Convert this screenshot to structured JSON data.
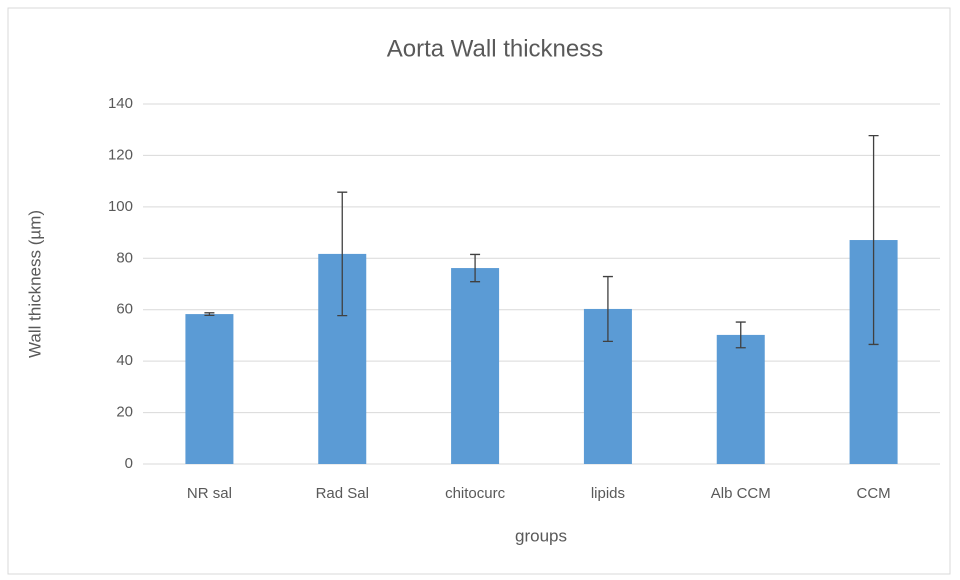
{
  "chart_data": {
    "type": "bar",
    "title": "Aorta Wall thickness",
    "x_label": "groups",
    "y_label": "Wall thickness (µm)",
    "categories": [
      "NR sal",
      "Rad Sal",
      "chitocurc",
      "lipids",
      "Alb CCM",
      "CCM"
    ],
    "values": [
      58.3,
      81.7,
      76.2,
      60.3,
      50.2,
      87.1
    ],
    "errors": [
      0.5,
      24,
      5.3,
      12.6,
      5,
      40.6
    ],
    "color": "#5b9bd5",
    "ylim": [
      0,
      140
    ],
    "yticks": [
      0,
      20,
      40,
      60,
      80,
      100,
      120,
      140
    ],
    "grid": true
  }
}
